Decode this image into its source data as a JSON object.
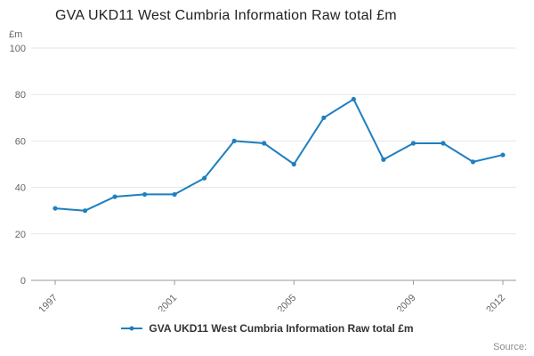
{
  "title": "GVA UKD11 West Cumbria Information Raw total £m",
  "y_axis_unit_label": "£m",
  "legend": {
    "label": "GVA UKD11 West Cumbria Information Raw total £m"
  },
  "source_label": "Source:",
  "colors": {
    "line": "#1f7fbf",
    "grid": "#e6e6e6",
    "axis_line": "#999999",
    "axis_text": "#666666",
    "title_text": "#222222"
  },
  "chart_data": {
    "type": "line",
    "title": "GVA UKD11 West Cumbria Information Raw total £m",
    "xlabel": "",
    "ylabel": "£m",
    "x": [
      1997,
      1998,
      1999,
      2000,
      2001,
      2002,
      2003,
      2004,
      2005,
      2006,
      2007,
      2008,
      2009,
      2010,
      2011,
      2012
    ],
    "series": [
      {
        "name": "GVA UKD11 West Cumbria Information Raw total £m",
        "values": [
          31,
          30,
          36,
          37,
          37,
          44,
          60,
          59,
          50,
          70,
          78,
          52,
          59,
          59,
          51,
          54
        ]
      }
    ],
    "ylim": [
      0,
      100
    ],
    "y_ticks": [
      0,
      20,
      40,
      60,
      80,
      100
    ],
    "x_tick_labels": [
      1997,
      2001,
      2005,
      2009,
      2012
    ],
    "grid": "horizontal",
    "legend_position": "bottom",
    "marker": "dot"
  }
}
